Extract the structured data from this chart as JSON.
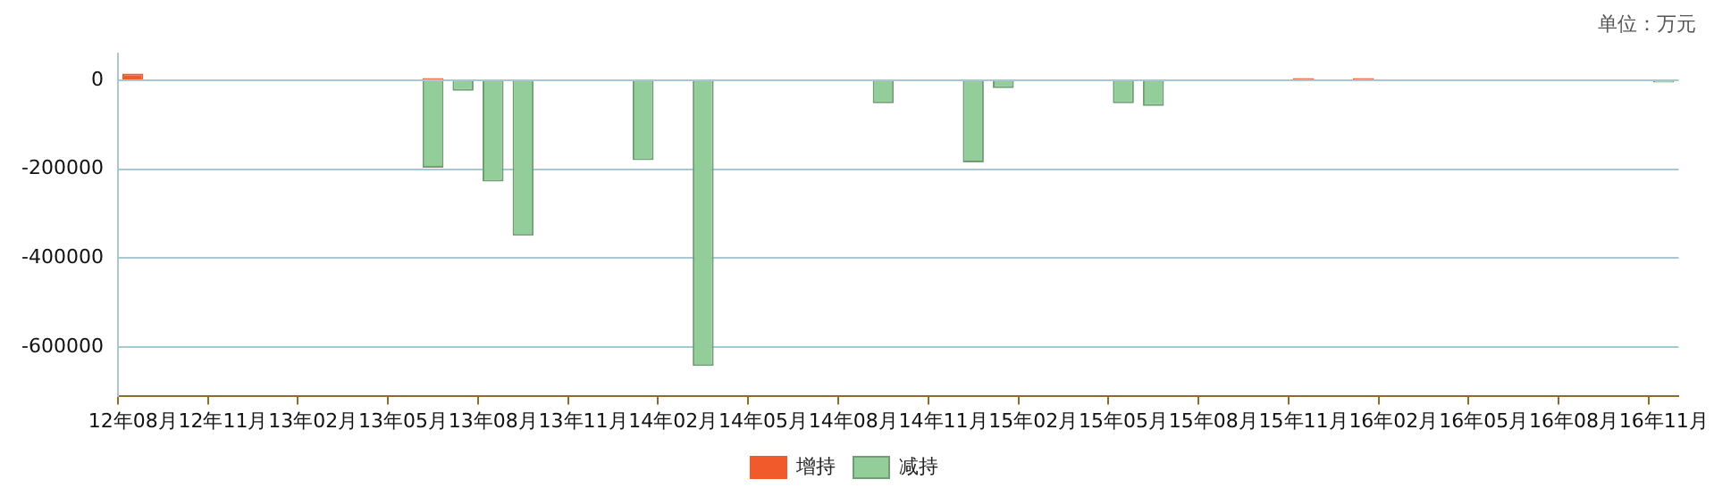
{
  "chart_data": {
    "type": "bar",
    "stacked": true,
    "categories": [
      "12年08月",
      null,
      null,
      "12年11月",
      null,
      null,
      "13年02月",
      null,
      null,
      "13年05月",
      null,
      null,
      "13年08月",
      null,
      null,
      "13年11月",
      null,
      null,
      "14年02月",
      null,
      null,
      "14年05月",
      null,
      null,
      "14年08月",
      null,
      null,
      "14年11月",
      null,
      null,
      "15年02月",
      null,
      null,
      "15年05月",
      null,
      null,
      "15年08月",
      null,
      null,
      "15年11月",
      null,
      null,
      "16年02月",
      null,
      null,
      "16年05月",
      null,
      null,
      "16年08月",
      null,
      null,
      "16年11月"
    ],
    "series": [
      {
        "name": "增持",
        "color": "#f15a2b",
        "values": [
          15000,
          null,
          null,
          null,
          null,
          null,
          null,
          null,
          null,
          null,
          5000,
          null,
          null,
          null,
          null,
          null,
          null,
          null,
          null,
          null,
          null,
          null,
          null,
          null,
          null,
          null,
          null,
          null,
          null,
          null,
          null,
          null,
          null,
          null,
          null,
          null,
          null,
          null,
          null,
          5000,
          null,
          5000,
          null,
          null,
          null,
          null,
          null,
          null,
          null,
          null,
          null,
          null
        ]
      },
      {
        "name": "减持",
        "color": "#93cd99",
        "values": [
          null,
          null,
          null,
          null,
          null,
          null,
          null,
          null,
          null,
          null,
          -197000,
          -24000,
          -228000,
          -350000,
          null,
          null,
          null,
          -180000,
          null,
          -643000,
          null,
          null,
          null,
          null,
          null,
          -52000,
          null,
          null,
          -185000,
          -18000,
          null,
          null,
          null,
          -52000,
          -58000,
          null,
          null,
          null,
          null,
          null,
          null,
          null,
          null,
          null,
          null,
          null,
          null,
          null,
          null,
          null,
          null,
          -5000
        ]
      }
    ],
    "ylim": [
      -710000,
      60000
    ],
    "yticks": [
      -600000,
      -400000,
      -200000,
      0
    ],
    "grid": "y",
    "legend": "bottom",
    "annotations": [
      "单位：万元"
    ]
  }
}
